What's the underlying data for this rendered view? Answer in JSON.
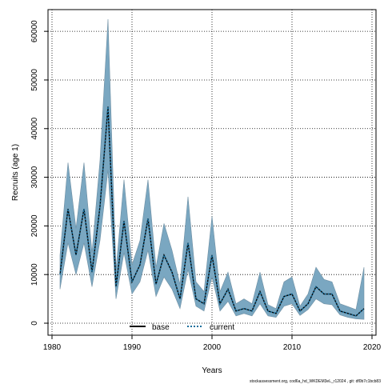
{
  "chart_data": {
    "type": "area",
    "xlabel": "Years",
    "ylabel": "Recruits (age 1)",
    "xlim": [
      1980,
      2020
    ],
    "ylim": [
      0,
      62000
    ],
    "xticks": [
      1980,
      1990,
      2000,
      2010,
      2020
    ],
    "yticks": [
      0,
      10000,
      20000,
      30000,
      40000,
      50000,
      60000
    ],
    "grid": true,
    "legend_position": "bottom-center",
    "footer": "stockassessment.org, cod6a_hd_WKDEM3eL_r12024 , git: df0b7c1bcb83",
    "x": [
      1981,
      1982,
      1983,
      1984,
      1985,
      1986,
      1987,
      1988,
      1989,
      1990,
      1991,
      1992,
      1993,
      1994,
      1995,
      1996,
      1997,
      1998,
      1999,
      2000,
      2001,
      2002,
      2003,
      2004,
      2005,
      2006,
      2007,
      2008,
      2009,
      2010,
      2011,
      2012,
      2013,
      2014,
      2015,
      2016,
      2017,
      2018,
      2019
    ],
    "series": [
      {
        "name": "base",
        "color": "#000000",
        "style": "solid",
        "values": [
          10000,
          23500,
          14000,
          23500,
          10500,
          24000,
          44500,
          7500,
          21000,
          8500,
          12000,
          21500,
          8000,
          14000,
          10500,
          5000,
          16500,
          5000,
          4000,
          14000,
          4000,
          7000,
          2500,
          3000,
          2500,
          6500,
          2500,
          2000,
          5500,
          6000,
          2500,
          4000,
          7500,
          6000,
          6000,
          2500,
          2000,
          1500,
          3000
        ]
      },
      {
        "name": "current",
        "color": "#1a6f9c",
        "style": "dotted",
        "values": [
          10000,
          23500,
          14000,
          23500,
          10500,
          24000,
          44500,
          7500,
          21000,
          8500,
          12000,
          21500,
          8000,
          14000,
          10500,
          5000,
          16500,
          5000,
          4000,
          14000,
          4000,
          7000,
          2500,
          3000,
          2500,
          6500,
          2500,
          2000,
          5500,
          6000,
          2500,
          4000,
          7500,
          6000,
          6000,
          2500,
          2000,
          1500,
          3000
        ]
      }
    ],
    "confidence_band": {
      "color": "#7aa7c1",
      "lower": [
        7000,
        16500,
        10000,
        16500,
        7500,
        17000,
        31500,
        5000,
        14500,
        6000,
        8500,
        15000,
        5500,
        9500,
        7000,
        3000,
        11000,
        3500,
        2500,
        9500,
        2500,
        4500,
        1500,
        2000,
        1500,
        4000,
        1500,
        1200,
        3500,
        4000,
        1600,
        2800,
        5000,
        4000,
        3800,
        1700,
        1200,
        900,
        800
      ],
      "upper": [
        14000,
        33000,
        19500,
        33000,
        14500,
        33500,
        62500,
        11000,
        29500,
        12000,
        17000,
        29500,
        11500,
        20500,
        15000,
        8000,
        26000,
        8500,
        6500,
        22000,
        6500,
        10500,
        4000,
        5000,
        4000,
        10500,
        3800,
        3000,
        8500,
        9500,
        3500,
        6000,
        11500,
        9000,
        8500,
        4000,
        3400,
        2800,
        11500
      ]
    }
  }
}
